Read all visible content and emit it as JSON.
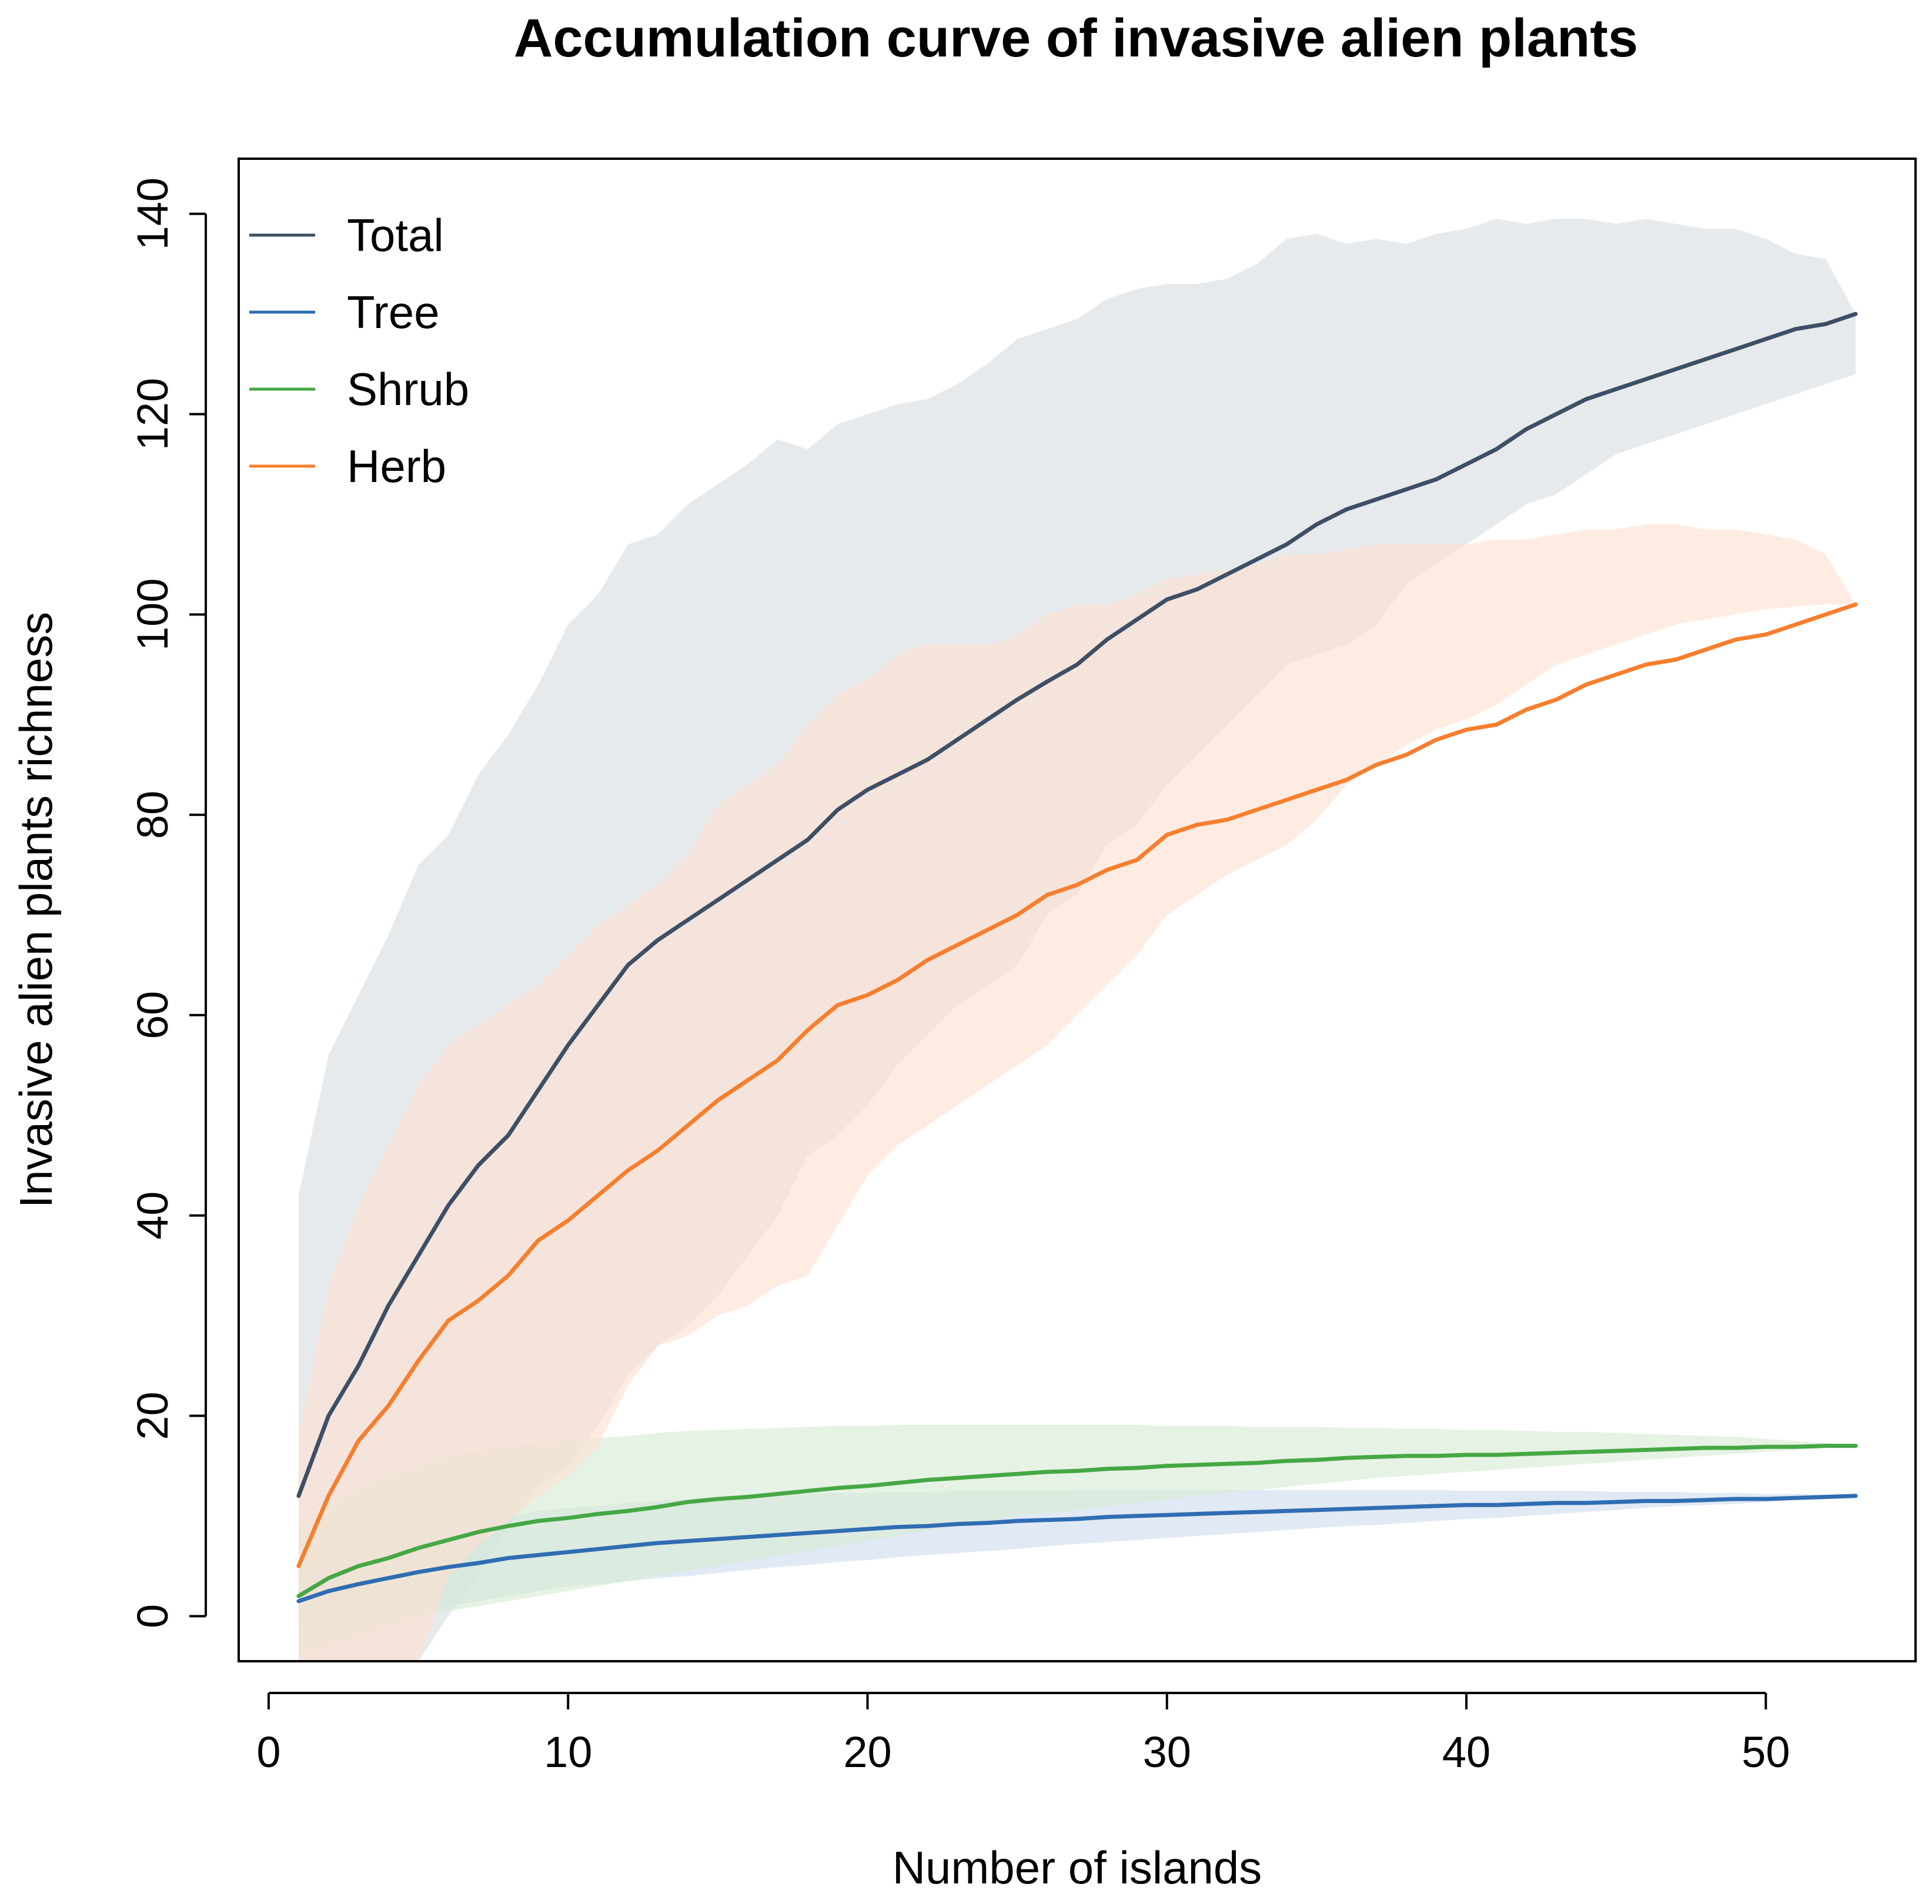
{
  "chart_data": {
    "type": "line",
    "title": "Accumulation curve of invasive alien plants",
    "xlabel": "Number of islands",
    "ylabel": "Invasive alien plants richness",
    "xlim": [
      -1,
      55
    ],
    "ylim": [
      -4.5,
      145.5
    ],
    "xticks": [
      0,
      10,
      20,
      30,
      40,
      50
    ],
    "yticks": [
      0,
      20,
      40,
      60,
      80,
      100,
      120,
      140
    ],
    "grid": false,
    "legend_position": "top-left",
    "x": [
      1,
      2,
      3,
      4,
      5,
      6,
      7,
      8,
      9,
      10,
      11,
      12,
      13,
      14,
      15,
      16,
      17,
      18,
      19,
      20,
      21,
      22,
      23,
      24,
      25,
      26,
      27,
      28,
      29,
      30,
      31,
      32,
      33,
      34,
      35,
      36,
      37,
      38,
      39,
      40,
      41,
      42,
      43,
      44,
      45,
      46,
      47,
      48,
      49,
      50,
      51,
      52,
      53
    ],
    "series": [
      {
        "name": "Total",
        "color": "#3d4f66",
        "band_color": "#d9dde2",
        "values": [
          12,
          20,
          25,
          31,
          36,
          41,
          45,
          48,
          52.5,
          57,
          61,
          65,
          67.5,
          69.5,
          71.5,
          73.5,
          75.5,
          77.5,
          80.5,
          82.5,
          84,
          85.5,
          87.5,
          89.5,
          91.5,
          93.3,
          95,
          97.5,
          99.5,
          101.5,
          102.5,
          104,
          105.5,
          107,
          109,
          110.5,
          111.5,
          112.5,
          113.5,
          115,
          116.5,
          118.5,
          120,
          121.5,
          122.5,
          123.5,
          124.5,
          125.5,
          126.5,
          127.5,
          128.5,
          129,
          130
        ],
        "upper": [
          42,
          56,
          62,
          68,
          75,
          78,
          84,
          88,
          93,
          99,
          102,
          107,
          108,
          111,
          113,
          115,
          117.5,
          116.5,
          119,
          120,
          121,
          121.5,
          123,
          125,
          127.5,
          128.5,
          129.5,
          131.5,
          132.5,
          133,
          133,
          133.5,
          135,
          137.5,
          138,
          137,
          137.5,
          137,
          138,
          138.5,
          139.5,
          139,
          139.5,
          139.5,
          139,
          139.5,
          139,
          138.5,
          138.5,
          137.5,
          136,
          135.5,
          130
        ],
        "lower": [
          -4.5,
          -4.5,
          -4.5,
          -4.5,
          -4.5,
          0,
          4,
          9,
          13,
          15,
          19,
          24,
          27,
          29,
          32,
          36,
          40,
          46,
          48,
          51,
          55,
          58,
          61,
          63,
          65,
          70,
          72,
          77,
          79,
          83,
          86,
          89,
          92,
          95,
          96,
          97,
          99,
          103,
          105,
          107,
          109,
          111,
          112,
          114,
          116,
          117,
          118,
          119,
          120,
          121,
          122,
          123,
          124
        ]
      },
      {
        "name": "Tree",
        "color": "#2f6db3",
        "band_color": "#cfdcef",
        "values": [
          1.5,
          2.5,
          3.2,
          3.8,
          4.4,
          4.9,
          5.3,
          5.8,
          6.1,
          6.4,
          6.7,
          7.0,
          7.3,
          7.5,
          7.7,
          7.9,
          8.1,
          8.3,
          8.5,
          8.7,
          8.9,
          9.0,
          9.2,
          9.3,
          9.5,
          9.6,
          9.7,
          9.9,
          10.0,
          10.1,
          10.2,
          10.3,
          10.4,
          10.5,
          10.6,
          10.7,
          10.8,
          10.9,
          11.0,
          11.1,
          11.1,
          11.2,
          11.3,
          11.3,
          11.4,
          11.5,
          11.5,
          11.6,
          11.7,
          11.7,
          11.8,
          11.9,
          12.0
        ],
        "upper": [
          4.5,
          6,
          7,
          8,
          8.5,
          9,
          9.5,
          10,
          10.5,
          10.8,
          11,
          11.3,
          11.5,
          11.7,
          11.9,
          12,
          12.1,
          12.2,
          12.3,
          12.3,
          12.4,
          12.4,
          12.5,
          12.5,
          12.5,
          12.5,
          12.6,
          12.6,
          12.6,
          12.6,
          12.6,
          12.6,
          12.6,
          12.6,
          12.6,
          12.6,
          12.6,
          12.6,
          12.6,
          12.5,
          12.5,
          12.5,
          12.5,
          12.5,
          12.4,
          12.4,
          12.4,
          12.3,
          12.3,
          12.2,
          12.2,
          12.1,
          12.0
        ],
        "lower": [
          -1.5,
          -1,
          -0.5,
          0,
          0.5,
          1,
          1.5,
          2,
          2.5,
          3,
          3.2,
          3.5,
          3.8,
          4,
          4.3,
          4.6,
          4.9,
          5.1,
          5.4,
          5.6,
          5.9,
          6.1,
          6.3,
          6.5,
          6.7,
          7,
          7.2,
          7.4,
          7.6,
          7.8,
          8,
          8.2,
          8.4,
          8.6,
          8.8,
          9,
          9.1,
          9.3,
          9.5,
          9.7,
          9.8,
          10,
          10.2,
          10.4,
          10.6,
          10.8,
          11,
          11.1,
          11.2,
          11.4,
          11.6,
          11.8,
          12.0
        ]
      },
      {
        "name": "Shrub",
        "color": "#45a845",
        "band_color": "#d6ebd3",
        "values": [
          2,
          3.8,
          5,
          5.8,
          6.8,
          7.6,
          8.4,
          9,
          9.5,
          9.8,
          10.2,
          10.5,
          10.9,
          11.4,
          11.7,
          11.9,
          12.2,
          12.5,
          12.8,
          13,
          13.3,
          13.6,
          13.8,
          14,
          14.2,
          14.4,
          14.5,
          14.7,
          14.8,
          15,
          15.1,
          15.2,
          15.3,
          15.5,
          15.6,
          15.8,
          15.9,
          16,
          16,
          16.1,
          16.1,
          16.2,
          16.3,
          16.4,
          16.5,
          16.6,
          16.7,
          16.8,
          16.8,
          16.9,
          16.9,
          17,
          17.0
        ],
        "upper": [
          9,
          11,
          12.5,
          14,
          15,
          16,
          16.5,
          17,
          17.3,
          17.6,
          17.8,
          18,
          18.3,
          18.5,
          18.6,
          18.7,
          18.8,
          18.9,
          19,
          19,
          19.1,
          19.1,
          19.1,
          19.1,
          19.1,
          19.1,
          19.1,
          19.1,
          19.1,
          19.0,
          19.0,
          19.0,
          18.9,
          18.9,
          18.9,
          18.8,
          18.8,
          18.7,
          18.7,
          18.6,
          18.6,
          18.5,
          18.4,
          18.4,
          18.3,
          18.2,
          18.1,
          18.0,
          17.9,
          17.7,
          17.5,
          17.3,
          17.0
        ],
        "lower": [
          -4,
          -3,
          -2,
          -1,
          0,
          0.5,
          1,
          1.5,
          2,
          2.5,
          3,
          3.5,
          4,
          4.5,
          5,
          5.5,
          6,
          6.5,
          7,
          7.5,
          8,
          8.5,
          9,
          9.5,
          10,
          10.3,
          10.6,
          11,
          11.3,
          11.6,
          12,
          12.3,
          12.6,
          12.9,
          13.2,
          13.5,
          13.8,
          14,
          14.2,
          14.4,
          14.6,
          14.8,
          15,
          15.2,
          15.4,
          15.6,
          15.8,
          16,
          16.2,
          16.4,
          16.6,
          16.8,
          17.0
        ]
      },
      {
        "name": "Herb",
        "color": "#f57f2e",
        "band_color": "#fde0d0",
        "values": [
          5,
          12,
          17.5,
          21,
          25.5,
          29.5,
          31.5,
          34,
          37.5,
          39.5,
          42,
          44.5,
          46.5,
          49,
          51.5,
          53.5,
          55.5,
          58.5,
          61,
          62,
          63.5,
          65.5,
          67,
          68.5,
          70,
          72,
          73,
          74.5,
          75.5,
          78,
          79,
          79.5,
          80.5,
          81.5,
          82.5,
          83.5,
          85,
          86,
          87.5,
          88.5,
          89,
          90.5,
          91.5,
          93,
          94,
          95,
          95.5,
          96.5,
          97.5,
          98,
          99,
          100,
          101
        ],
        "upper": [
          18,
          33,
          41,
          47,
          53,
          57,
          59,
          61,
          63,
          66,
          69,
          71,
          73,
          76,
          81,
          83,
          85,
          89,
          92,
          93.5,
          96,
          97,
          97,
          97,
          98,
          100,
          101,
          101,
          102,
          103.5,
          104,
          104.5,
          105,
          106,
          106,
          106.5,
          107,
          107,
          107,
          107,
          107.5,
          107.5,
          108,
          108.5,
          108.5,
          109,
          109,
          108.5,
          108.5,
          108,
          107.5,
          106,
          101
        ],
        "lower": [
          -4.5,
          -4.5,
          -4.5,
          -4.5,
          -4.5,
          4,
          7,
          9.5,
          12,
          14,
          17,
          23,
          27,
          28,
          30,
          31,
          33,
          34,
          39,
          44,
          47,
          49,
          51,
          53,
          55,
          57,
          60,
          63,
          66,
          70,
          72,
          74,
          75.5,
          77,
          79.5,
          83,
          85,
          87,
          88.5,
          89.5,
          91,
          93,
          95,
          96,
          97,
          98,
          99,
          99.5,
          100,
          100.5,
          100.8,
          101,
          101
        ]
      }
    ]
  }
}
